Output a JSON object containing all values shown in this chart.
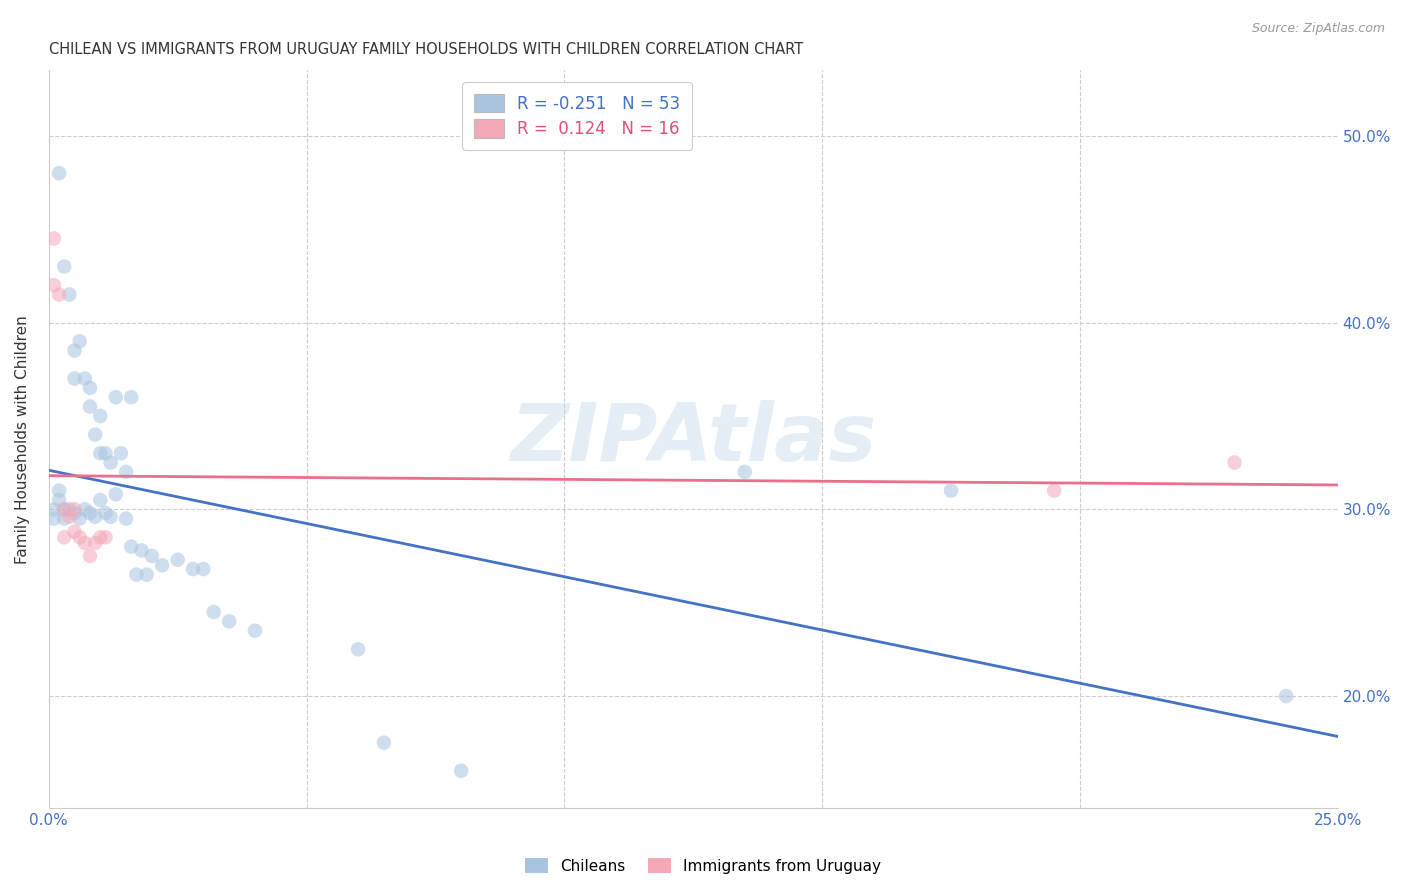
{
  "title": "CHILEAN VS IMMIGRANTS FROM URUGUAY FAMILY HOUSEHOLDS WITH CHILDREN CORRELATION CHART",
  "source": "Source: ZipAtlas.com",
  "ylabel": "Family Households with Children",
  "ytick_labels": [
    "20.0%",
    "30.0%",
    "40.0%",
    "50.0%"
  ],
  "ytick_values": [
    0.2,
    0.3,
    0.4,
    0.5
  ],
  "xlim": [
    0.0,
    0.25
  ],
  "ylim": [
    0.14,
    0.535
  ],
  "legend_line1": "R = -0.251   N = 53",
  "legend_line2": "R =  0.124   N = 16",
  "legend_color1": "#a8c4e0",
  "legend_color2": "#f4a8b8",
  "legend_text_color1": "#4472c4",
  "legend_text_color2": "#e05070",
  "chilean_x": [
    0.002,
    0.003,
    0.004,
    0.005,
    0.005,
    0.006,
    0.007,
    0.008,
    0.008,
    0.009,
    0.01,
    0.01,
    0.011,
    0.012,
    0.013,
    0.014,
    0.015,
    0.016,
    0.001,
    0.001,
    0.002,
    0.002,
    0.003,
    0.003,
    0.004,
    0.005,
    0.006,
    0.007,
    0.008,
    0.009,
    0.01,
    0.011,
    0.012,
    0.013,
    0.015,
    0.016,
    0.017,
    0.018,
    0.019,
    0.02,
    0.022,
    0.025,
    0.028,
    0.03,
    0.032,
    0.035,
    0.04,
    0.06,
    0.065,
    0.08,
    0.135,
    0.175,
    0.24
  ],
  "chilean_y": [
    0.48,
    0.43,
    0.415,
    0.385,
    0.37,
    0.39,
    0.37,
    0.365,
    0.355,
    0.34,
    0.35,
    0.33,
    0.33,
    0.325,
    0.36,
    0.33,
    0.32,
    0.36,
    0.3,
    0.295,
    0.305,
    0.31,
    0.3,
    0.295,
    0.3,
    0.298,
    0.295,
    0.3,
    0.298,
    0.296,
    0.305,
    0.298,
    0.296,
    0.308,
    0.295,
    0.28,
    0.265,
    0.278,
    0.265,
    0.275,
    0.27,
    0.273,
    0.268,
    0.268,
    0.245,
    0.24,
    0.235,
    0.225,
    0.175,
    0.16,
    0.32,
    0.31,
    0.2
  ],
  "chilean_color": "#a8c4e0",
  "chilean_line_color": "#4472c4",
  "uruguay_x": [
    0.001,
    0.001,
    0.002,
    0.003,
    0.003,
    0.004,
    0.005,
    0.005,
    0.006,
    0.007,
    0.008,
    0.009,
    0.01,
    0.011,
    0.195,
    0.23
  ],
  "uruguay_y": [
    0.445,
    0.42,
    0.415,
    0.3,
    0.285,
    0.296,
    0.3,
    0.288,
    0.285,
    0.282,
    0.275,
    0.282,
    0.285,
    0.285,
    0.31,
    0.325
  ],
  "uruguay_color": "#f4a8b8",
  "uruguay_line_color": "#e8708a",
  "watermark_text": "ZIPAtlas",
  "dot_size": 110,
  "dot_alpha": 0.55,
  "line_width": 2.0,
  "grid_color": "#cccccc",
  "axis_label_color": "#4472c4",
  "title_color": "#333333",
  "source_color": "#999999"
}
